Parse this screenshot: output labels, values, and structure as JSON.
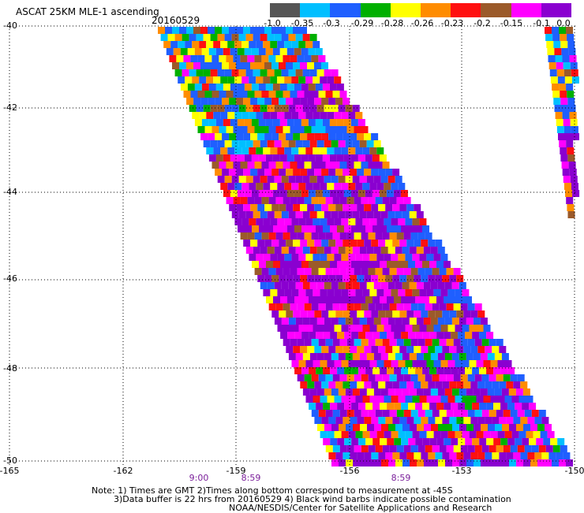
{
  "header": {
    "title": "ASCAT 25KM MLE-1 ascending",
    "date": "20160529"
  },
  "colorbar": {
    "colors": [
      "#555555",
      "#00bfff",
      "#1f5fff",
      "#00b000",
      "#ffff00",
      "#ff8c00",
      "#ff1010",
      "#9b5a2a",
      "#ff00ff",
      "#8a00d0"
    ],
    "labels": [
      "-1.0",
      "-0.35",
      "-0.3",
      "-0.29",
      "-0.28",
      "-0.26",
      "-0.23",
      "-0.2",
      "-0.15",
      "-0.1",
      "0.0"
    ]
  },
  "axes": {
    "x_ticks": [
      "-165",
      "-162",
      "-159",
      "-156",
      "-153",
      "-150"
    ],
    "y_ticks": [
      "-40",
      "-42",
      "-44",
      "-46",
      "-48",
      "-50"
    ]
  },
  "time_labels": [
    "9:00",
    "8:59",
    "8:59"
  ],
  "notes": {
    "line1": "Note: 1) Times are GMT 2)Times along bottom correspond to measurement at -45S",
    "line2": "3)Data buffer is 22 hrs from 20160529 4) Black wind barbs indicate possible contamination",
    "line3": "NOAA/NESDIS/Center for Satellite Applications and Research"
  }
}
